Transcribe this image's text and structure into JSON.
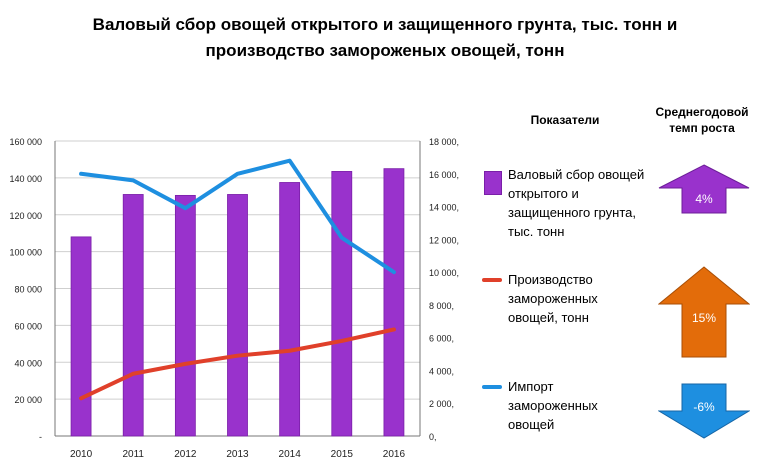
{
  "chart_data": {
    "type": "bar",
    "title_line1": "Валовый сбор овощей открытого и защищенного грунта, тыс. тонн и",
    "title_line2": "производство замороженых овощей, тонн",
    "categories": [
      "2010",
      "2011",
      "2012",
      "2013",
      "2014",
      "2015",
      "2016"
    ],
    "y_left": {
      "ylim": [
        0,
        160000
      ],
      "ticks": [
        "-",
        "20 000",
        "40 000",
        "60 000",
        "80 000",
        "100 000",
        "120 000",
        "140 000",
        "160 000"
      ]
    },
    "y_right": {
      "ylim": [
        0,
        18000
      ],
      "ticks": [
        "0,",
        "2 000,",
        "4 000,",
        "6 000,",
        "8 000,",
        "10 000,",
        "12 000,",
        "14 000,",
        "16 000,",
        "18 000,"
      ]
    },
    "series": [
      {
        "name": "Валовый сбор овощей открытого и защищенного грунта, тыс. тонн",
        "type": "bar",
        "axis": "left",
        "color": "#9932CC",
        "values": [
          108000,
          131000,
          130500,
          131000,
          137500,
          143500,
          145000
        ]
      },
      {
        "name": "Производство замороженных овощей, тонн",
        "type": "line",
        "axis": "right",
        "color": "#E0402A",
        "values": [
          2300,
          3800,
          4400,
          4900,
          5200,
          5800,
          6500
        ]
      },
      {
        "name": "Импорт замороженных овощей",
        "type": "line",
        "axis": "right",
        "color": "#1E8FE0",
        "values": [
          16000,
          15600,
          13900,
          16000,
          16800,
          12100,
          10000
        ]
      }
    ],
    "grid": true,
    "legend_position": "right"
  },
  "legend": {
    "header": "Показатели",
    "items": [
      {
        "line1": "Валовый сбор овощей",
        "line2": "открытого и",
        "line3": "защищенного грунта,",
        "line4": "тыс. тонн"
      },
      {
        "line1": "Производство",
        "line2": "замороженных",
        "line3": "овощей, тонн"
      },
      {
        "line1": "Импорт",
        "line2": "замороженных",
        "line3": "овощей"
      }
    ]
  },
  "growth": {
    "header_line1": "Среднегодовой",
    "header_line2": "темп роста",
    "values": [
      {
        "label": "4%",
        "direction": "up",
        "color": "#9932CC"
      },
      {
        "label": "15%",
        "direction": "up",
        "color": "#E36C0A"
      },
      {
        "label": "-6%",
        "direction": "down",
        "color": "#1E8FE0"
      }
    ]
  }
}
